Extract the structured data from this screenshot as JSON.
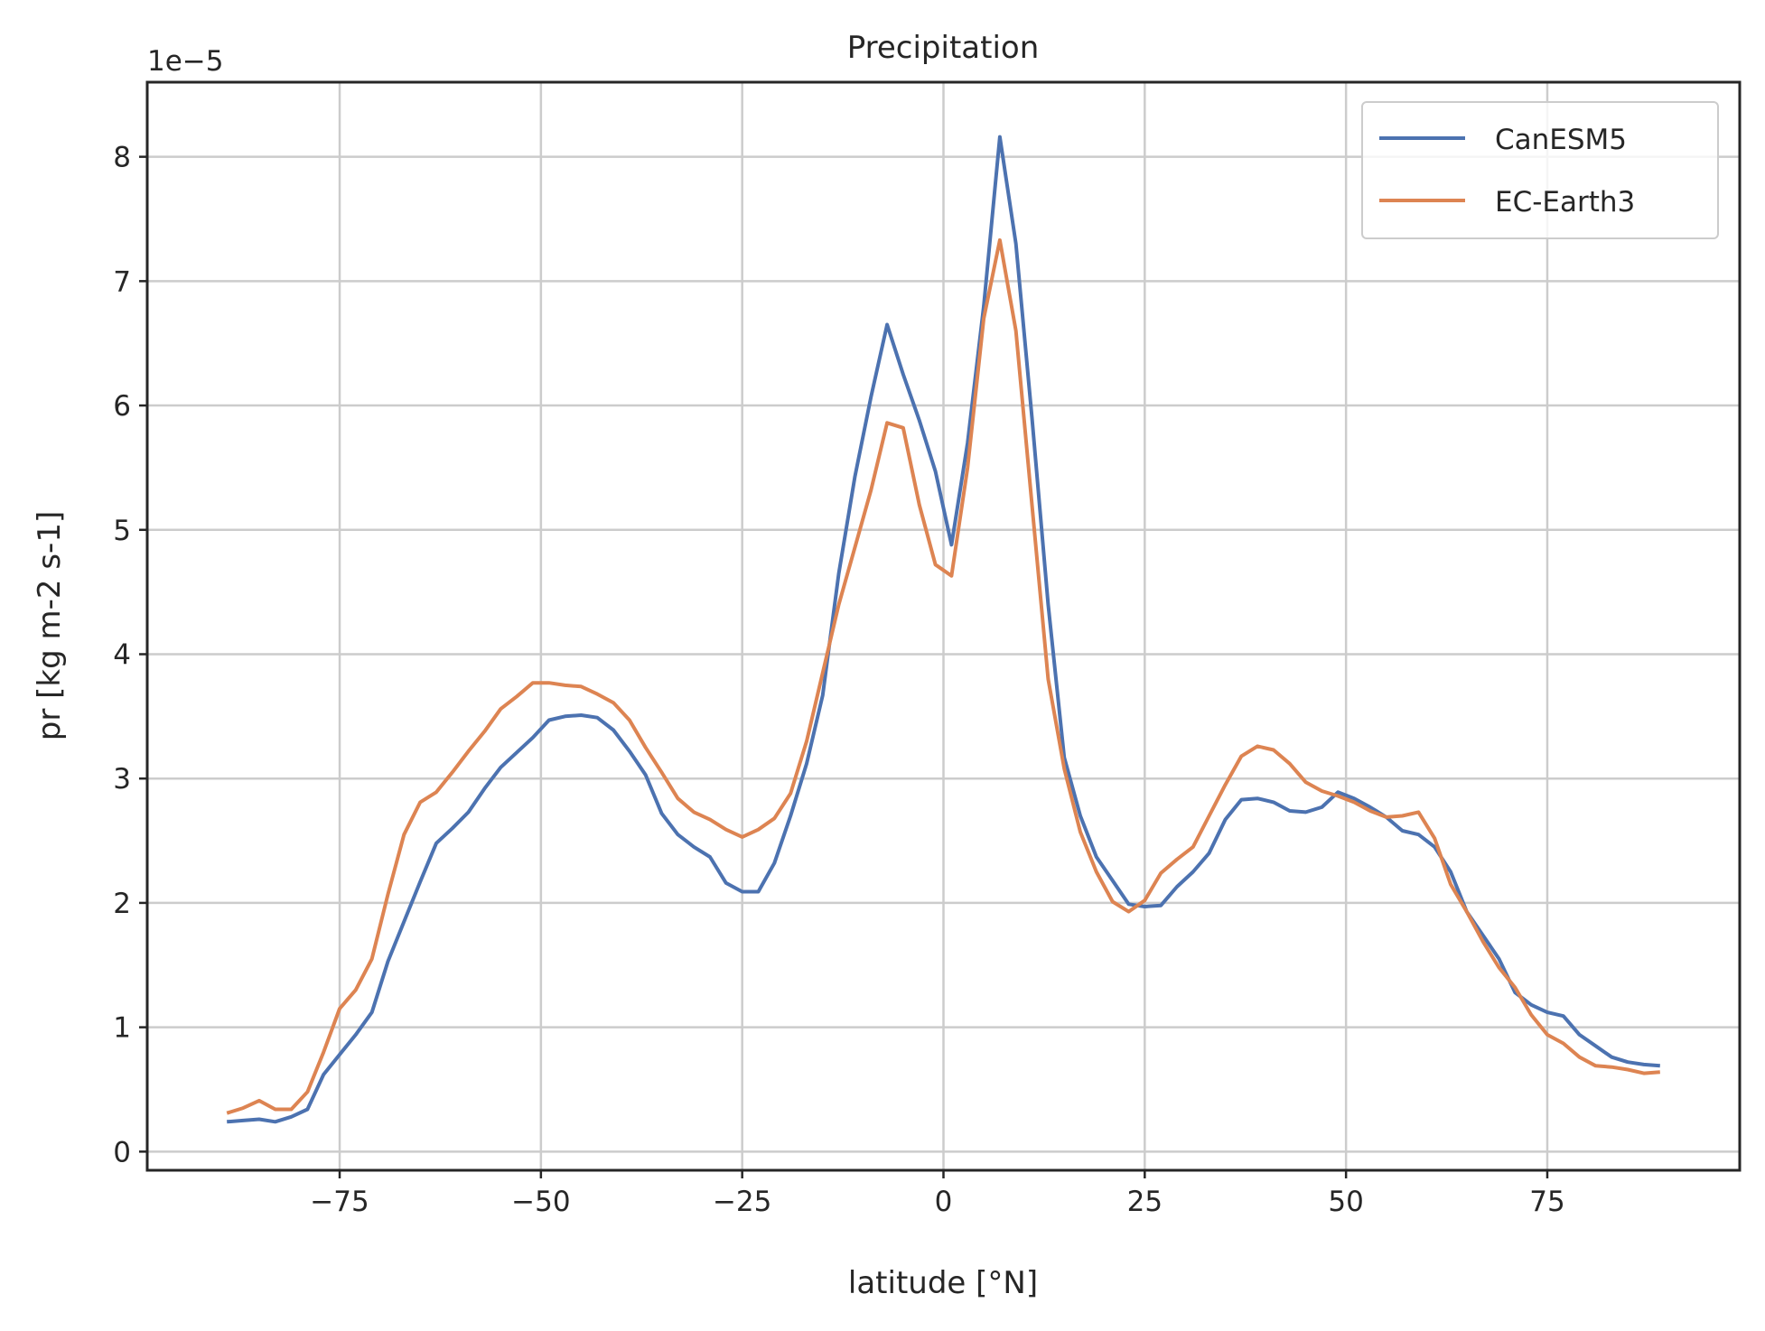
{
  "chart_data": {
    "type": "line",
    "title": "Precipitation",
    "xlabel": "latitude [°N]",
    "ylabel": "pr [kg m-2 s-1]",
    "y_offset_label": "1e−5",
    "xlim": [
      -98.9,
      98.9
    ],
    "ylim": [
      -0.15,
      8.6
    ],
    "xticks": [
      -75,
      -50,
      -25,
      0,
      25,
      50,
      75
    ],
    "xtick_labels": [
      "−75",
      "−50",
      "−25",
      "0",
      "25",
      "50",
      "75"
    ],
    "yticks": [
      0,
      1,
      2,
      3,
      4,
      5,
      6,
      7,
      8
    ],
    "ytick_labels": [
      "0",
      "1",
      "2",
      "3",
      "4",
      "5",
      "6",
      "7",
      "8"
    ],
    "grid": true,
    "legend_position": "top-right",
    "x": [
      -89,
      -87,
      -85,
      -83,
      -81,
      -79,
      -77,
      -75,
      -73,
      -71,
      -69,
      -67,
      -65,
      -63,
      -61,
      -59,
      -57,
      -55,
      -53,
      -51,
      -49,
      -47,
      -45,
      -43,
      -41,
      -39,
      -37,
      -35,
      -33,
      -31,
      -29,
      -27,
      -25,
      -23,
      -21,
      -19,
      -17,
      -15,
      -13,
      -11,
      -9,
      -7,
      -5,
      -3,
      -1,
      1,
      3,
      5,
      7,
      9,
      11,
      13,
      15,
      17,
      19,
      21,
      23,
      25,
      27,
      29,
      31,
      33,
      35,
      37,
      39,
      41,
      43,
      45,
      47,
      49,
      51,
      53,
      55,
      57,
      59,
      61,
      63,
      65,
      67,
      69,
      71,
      73,
      75,
      77,
      79,
      81,
      83,
      85,
      87,
      89
    ],
    "series": [
      {
        "name": "CanESM5",
        "color": "#4c72b0",
        "values": [
          0.24,
          0.25,
          0.26,
          0.24,
          0.28,
          0.34,
          0.62,
          0.78,
          0.94,
          1.12,
          1.53,
          1.85,
          2.17,
          2.48,
          2.6,
          2.73,
          2.92,
          3.09,
          3.21,
          3.33,
          3.47,
          3.5,
          3.51,
          3.49,
          3.39,
          3.22,
          3.03,
          2.72,
          2.55,
          2.45,
          2.37,
          2.16,
          2.09,
          2.09,
          2.32,
          2.7,
          3.12,
          3.67,
          4.65,
          5.43,
          6.07,
          6.65,
          6.25,
          5.88,
          5.47,
          4.88,
          5.7,
          6.8,
          8.16,
          7.3,
          5.9,
          4.4,
          3.17,
          2.7,
          2.37,
          2.18,
          1.99,
          1.97,
          1.98,
          2.13,
          2.25,
          2.4,
          2.67,
          2.83,
          2.84,
          2.81,
          2.74,
          2.73,
          2.77,
          2.89,
          2.84,
          2.77,
          2.69,
          2.58,
          2.55,
          2.45,
          2.25,
          1.93,
          1.74,
          1.55,
          1.28,
          1.18,
          1.12,
          1.09,
          0.94,
          0.85,
          0.76,
          0.72,
          0.7,
          0.69
        ]
      },
      {
        "name": "EC-Earth3",
        "color": "#dd8452",
        "values": [
          0.31,
          0.35,
          0.41,
          0.34,
          0.34,
          0.48,
          0.8,
          1.15,
          1.3,
          1.55,
          2.07,
          2.55,
          2.81,
          2.89,
          3.05,
          3.22,
          3.38,
          3.56,
          3.66,
          3.77,
          3.77,
          3.75,
          3.74,
          3.68,
          3.61,
          3.47,
          3.25,
          3.05,
          2.84,
          2.73,
          2.67,
          2.59,
          2.53,
          2.59,
          2.68,
          2.88,
          3.3,
          3.85,
          4.4,
          4.86,
          5.32,
          5.86,
          5.82,
          5.2,
          4.72,
          4.63,
          5.5,
          6.7,
          7.33,
          6.6,
          5.2,
          3.8,
          3.08,
          2.57,
          2.25,
          2.01,
          1.93,
          2.02,
          2.24,
          2.35,
          2.45,
          2.7,
          2.95,
          3.18,
          3.26,
          3.23,
          3.12,
          2.97,
          2.9,
          2.86,
          2.81,
          2.74,
          2.69,
          2.7,
          2.73,
          2.52,
          2.15,
          1.93,
          1.69,
          1.48,
          1.32,
          1.1,
          0.94,
          0.87,
          0.76,
          0.69,
          0.68,
          0.66,
          0.63,
          0.64
        ]
      }
    ]
  }
}
